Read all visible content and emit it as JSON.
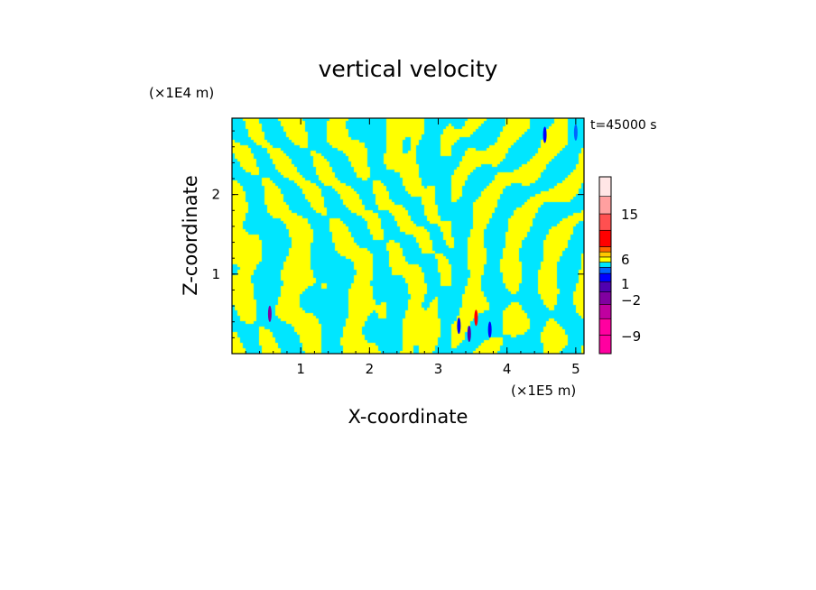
{
  "chart_data": {
    "type": "heatmap",
    "title": "vertical velocity",
    "xlabel": "X-coordinate",
    "ylabel": "Z-coordinate",
    "x_unit": "(×1E5 m)",
    "y_unit": "(×1E4 m)",
    "time_label": "t=45000 s",
    "xlim": [
      0,
      5.12
    ],
    "ylim": [
      0,
      2.96
    ],
    "x_ticks": [
      {
        "value": 1,
        "label": "1"
      },
      {
        "value": 2,
        "label": "2"
      },
      {
        "value": 3,
        "label": "3"
      },
      {
        "value": 4,
        "label": "4"
      },
      {
        "value": 5,
        "label": "5"
      }
    ],
    "y_ticks": [
      {
        "value": 1,
        "label": "1"
      },
      {
        "value": 2,
        "label": "2"
      }
    ],
    "field_description_colors": {
      "positive": "#ffff00",
      "negative": "#00e6ff"
    },
    "colorbar": {
      "levels": [
        {
          "color": "#ff00a0"
        },
        {
          "color": "#ff00a0"
        },
        {
          "color": "#c000a0"
        },
        {
          "color": "#8000a0"
        },
        {
          "color": "#5000b0"
        },
        {
          "color": "#0000ff"
        },
        {
          "color": "#0064ff"
        },
        {
          "color": "#00e6ff"
        },
        {
          "color": "#ffff00"
        },
        {
          "color": "#ffc800"
        },
        {
          "color": "#ff6400"
        },
        {
          "color": "#ff0000"
        },
        {
          "color": "#ff5050"
        },
        {
          "color": "#ffa0a0"
        },
        {
          "color": "#ffe6e6"
        }
      ],
      "labels": [
        {
          "text": "15",
          "value": 15
        },
        {
          "text": "6",
          "value": 6
        },
        {
          "text": "1",
          "value": 1
        },
        {
          "text": "−2",
          "value": -2
        },
        {
          "text": "−9",
          "value": -9
        }
      ]
    }
  }
}
